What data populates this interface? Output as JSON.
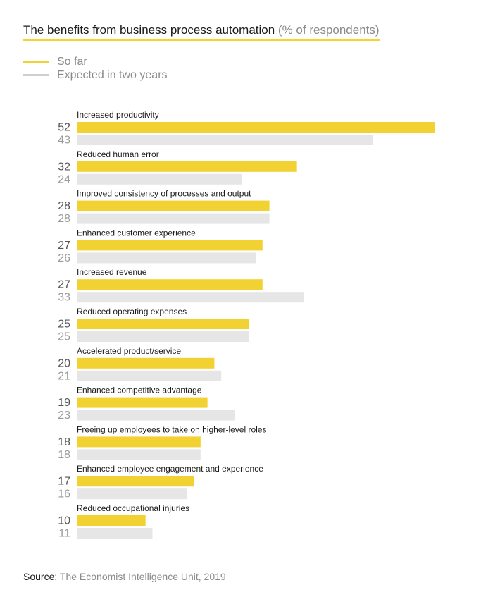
{
  "title": "The benefits from business process automation",
  "subtitle": "(% of respondents)",
  "legend": [
    {
      "label": "So far",
      "color": "#f2d232"
    },
    {
      "label": "Expected in two years",
      "color": "#cfcfcf"
    }
  ],
  "source": {
    "label": "Source:",
    "text": "The Economist Intelligence Unit, 2019"
  },
  "chart_data": {
    "type": "bar",
    "orientation": "horizontal",
    "title": "The benefits from business process automation",
    "subtitle": "(% of respondents)",
    "categories": [
      "Increased productivity",
      "Reduced human error",
      "Improved consistency of processes and output",
      "Enhanced customer experience",
      "Increased revenue",
      "Reduced operating expenses",
      "Accelerated product/service",
      "Enhanced competitive advantage",
      "Freeing up employees to take on higher-level roles",
      "Enhanced employee engagement and experience",
      "Reduced occupational injuries"
    ],
    "series": [
      {
        "name": "So far",
        "color": "#f2d232",
        "values": [
          52,
          32,
          28,
          27,
          27,
          25,
          20,
          19,
          18,
          17,
          10
        ]
      },
      {
        "name": "Expected in two years",
        "color": "#e6e6e6",
        "values": [
          43,
          24,
          28,
          26,
          33,
          25,
          21,
          23,
          18,
          16,
          11
        ]
      }
    ],
    "legend_position": "top-left",
    "grid": false
  }
}
